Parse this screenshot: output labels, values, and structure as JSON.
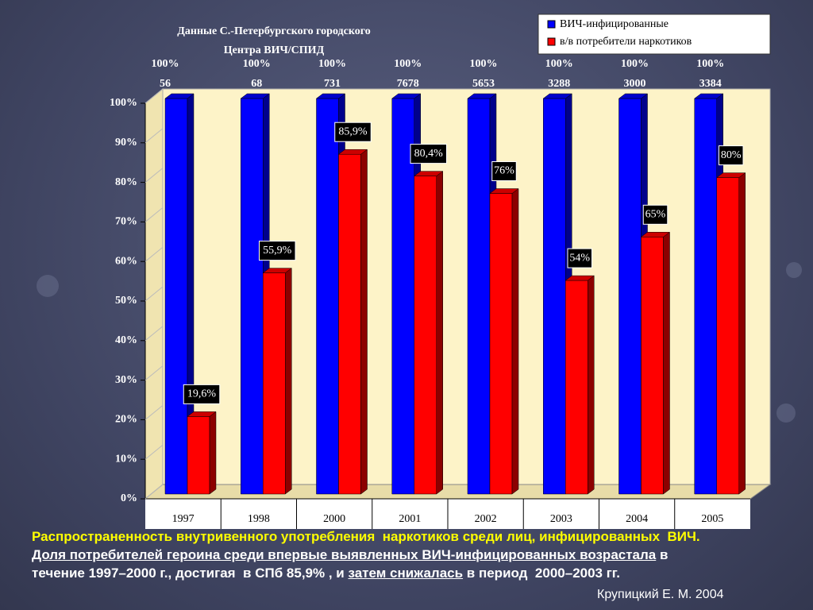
{
  "chart_data": {
    "type": "bar3d",
    "title": [
      "Данные С.-Петербургского городского",
      "Центра ВИЧ/СПИД"
    ],
    "categories": [
      "1997",
      "1998",
      "2000",
      "2001",
      "2002",
      "2003",
      "2004",
      "2005"
    ],
    "series": [
      {
        "name": "ВИЧ-инфицированные",
        "color": "#0000ff",
        "values": [
          100,
          100,
          100,
          100,
          100,
          100,
          100,
          100
        ],
        "value_labels": [
          "100%",
          "100%",
          "100%",
          "100%",
          "100%",
          "100%",
          "100%",
          "100%"
        ],
        "counts": [
          56,
          68,
          731,
          7678,
          5653,
          3288,
          3000,
          3384
        ]
      },
      {
        "name": "в/в потребители наркотиков",
        "color": "#ff0000",
        "values": [
          19.6,
          55.9,
          85.9,
          80.4,
          76,
          54,
          65,
          80
        ],
        "value_labels": [
          "19,6%",
          "55,9%",
          "85,9%",
          "80,4%",
          "76%",
          "54%",
          "65%",
          "80%"
        ]
      }
    ],
    "ylim": [
      0,
      100
    ],
    "yticks": [
      {
        "value": 0,
        "label": "0%"
      },
      {
        "value": 10,
        "label": "10%"
      },
      {
        "value": 20,
        "label": "20%"
      },
      {
        "value": 30,
        "label": "30%"
      },
      {
        "value": 40,
        "label": "40%"
      },
      {
        "value": 50,
        "label": "50%"
      },
      {
        "value": 60,
        "label": "60%"
      },
      {
        "value": 70,
        "label": "70%"
      },
      {
        "value": 80,
        "label": "80%"
      },
      {
        "value": 90,
        "label": "90%"
      },
      {
        "value": 100,
        "label": "100%"
      }
    ]
  },
  "caption": [
    [
      {
        "text": "Распространенность внутривенного употребления  наркотиков среди лиц, инфицированных  ВИЧ.",
        "underline": false
      }
    ],
    [
      {
        "text": "Доля потребителей героина среди впервые выявленных ВИЧ-инфицированных возрастала",
        "underline": true
      },
      {
        "text": " в",
        "underline": false
      }
    ],
    [
      {
        "text": "течение 1997–2000 г., достигая  в СПб 85,9% , и ",
        "underline": false
      },
      {
        "text": "затем снижалась",
        "underline": true
      },
      {
        "text": " в период  2000–2003 гг.",
        "underline": false
      }
    ]
  ],
  "author": "Крупицкий Е. М. 2004"
}
